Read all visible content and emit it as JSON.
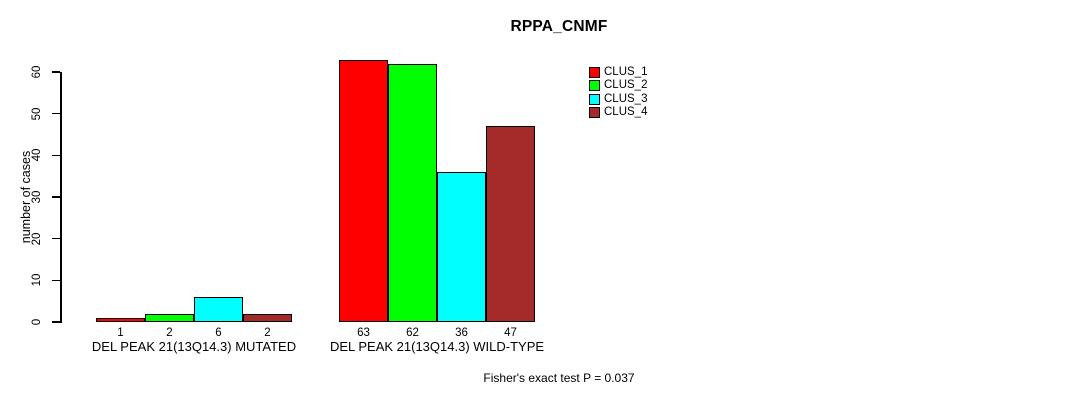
{
  "chart_data": {
    "type": "bar",
    "title": "RPPA_CNMF",
    "ylabel": "number of cases",
    "xlabel": "",
    "ylim": [
      0,
      60
    ],
    "yticks": [
      0,
      10,
      20,
      30,
      40,
      50,
      60
    ],
    "grid": false,
    "legend_position": "top-right",
    "categories": [
      "DEL PEAK 21(13Q14.3) MUTATED",
      "DEL PEAK 21(13Q14.3) WILD-TYPE"
    ],
    "groups": [
      {
        "label": "DEL PEAK 21(13Q14.3) MUTATED",
        "values": [
          1,
          2,
          6,
          2
        ]
      },
      {
        "label": "DEL PEAK 21(13Q14.3) WILD-TYPE",
        "values": [
          63,
          62,
          36,
          47
        ]
      }
    ],
    "series": [
      {
        "name": "CLUS_1",
        "color": "#FF0000"
      },
      {
        "name": "CLUS_2",
        "color": "#00FF00"
      },
      {
        "name": "CLUS_3",
        "color": "#00FFFF"
      },
      {
        "name": "CLUS_4",
        "color": "#A52A2A"
      }
    ],
    "bar_border_color": "#000000",
    "annotation": "Fisher's exact test P = 0.037"
  }
}
